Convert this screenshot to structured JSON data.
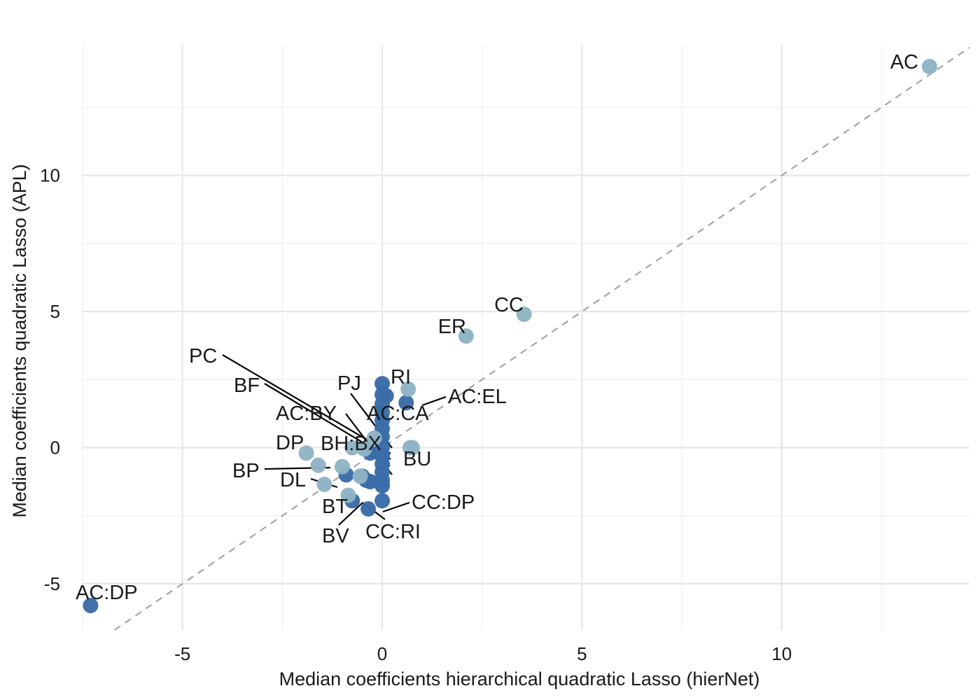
{
  "chart_data": {
    "type": "scatter",
    "title": "",
    "xlabel": "Median coefficients hierarchical quadratic Lasso (hierNet)",
    "ylabel": "Median coefficients quadratic Lasso (APL)",
    "xlim": [
      -7.5,
      14.7
    ],
    "ylim": [
      -6.7,
      14.8
    ],
    "x_ticks": [
      -5,
      0,
      5,
      10
    ],
    "y_ticks": [
      -5,
      0,
      5,
      10
    ],
    "x_tick_labels": [
      "-5",
      "0",
      "5",
      "10"
    ],
    "y_tick_labels": [
      "-5",
      "0",
      "5",
      "10"
    ],
    "grid": true,
    "legend": "none",
    "reference_line": {
      "type": "identity",
      "style": "dashed",
      "color": "#a6a6a6"
    },
    "colors": {
      "dark": "#3a6ca8",
      "light": "#8fb4c4"
    },
    "series": [
      {
        "group": "dark",
        "points": [
          {
            "x": -7.3,
            "y": -5.8,
            "label": "AC:DP"
          },
          {
            "x": 0.0,
            "y": 2.35,
            "label": "RI"
          },
          {
            "x": 0.6,
            "y": 1.65,
            "label": "AC:EL"
          },
          {
            "x": 0.0,
            "y": 0.0,
            "label": "AC:CA"
          },
          {
            "x": -0.3,
            "y": -0.2,
            "label": "BH:BX"
          },
          {
            "x": -0.9,
            "y": -1.0,
            "label": "BP"
          },
          {
            "x": -0.75,
            "y": -1.95,
            "label": "BV"
          },
          {
            "x": -0.35,
            "y": -2.25,
            "label": "CC:RI"
          },
          {
            "x": 0.0,
            "y": -1.95,
            "label": "CC:DP"
          },
          {
            "x": 0.0,
            "y": 1.95
          },
          {
            "x": 0.1,
            "y": 1.9
          },
          {
            "x": 0.0,
            "y": 1.6
          },
          {
            "x": 0.0,
            "y": 1.3
          },
          {
            "x": 0.0,
            "y": 1.0
          },
          {
            "x": 0.0,
            "y": 0.7
          },
          {
            "x": 0.0,
            "y": 0.4
          },
          {
            "x": 0.0,
            "y": -0.3
          },
          {
            "x": 0.0,
            "y": -0.6
          },
          {
            "x": 0.0,
            "y": -0.9
          },
          {
            "x": 0.0,
            "y": -1.2
          },
          {
            "x": 0.0,
            "y": -1.4
          },
          {
            "x": -0.5,
            "y": -1.05
          },
          {
            "x": -0.4,
            "y": -1.2
          },
          {
            "x": -0.3,
            "y": -1.25
          }
        ]
      },
      {
        "group": "light",
        "points": [
          {
            "x": 13.7,
            "y": 14.0,
            "label": "AC"
          },
          {
            "x": 3.55,
            "y": 4.9,
            "label": "CC"
          },
          {
            "x": 2.1,
            "y": 4.1,
            "label": "ER"
          },
          {
            "x": 0.65,
            "y": 2.15,
            "label": "PJ"
          },
          {
            "x": -0.75,
            "y": 0.0,
            "label": "PC"
          },
          {
            "x": -0.2,
            "y": 0.35,
            "label": "BF"
          },
          {
            "x": -0.45,
            "y": -0.05,
            "label": "AC:BY"
          },
          {
            "x": -1.9,
            "y": -0.2,
            "label": "DP"
          },
          {
            "x": -1.45,
            "y": -1.35,
            "label": "DL"
          },
          {
            "x": -0.85,
            "y": -1.75,
            "label": "BT"
          },
          {
            "x": 0.75,
            "y": 0.0,
            "label": "BU"
          },
          {
            "x": -1.6,
            "y": -0.65
          },
          {
            "x": -1.0,
            "y": -0.7
          },
          {
            "x": -0.55,
            "y": -1.05
          },
          {
            "x": 0.7,
            "y": 0.0
          }
        ]
      }
    ]
  }
}
